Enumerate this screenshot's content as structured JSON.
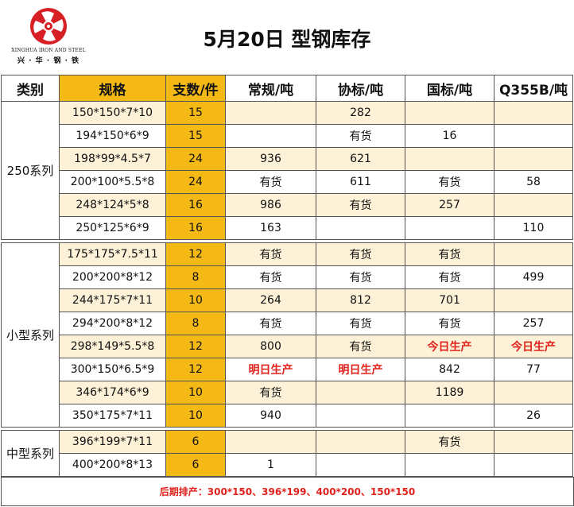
{
  "company": {
    "name_en": "XINGHUA IRON AND STEEL",
    "name_cn": "兴 · 华 · 钢 · 铁"
  },
  "title": "5月20日  型钢库存",
  "headers": [
    "类别",
    "规格",
    "支数/件",
    "常规/吨",
    "协标/吨",
    "国标/吨",
    "Q355B/吨"
  ],
  "groups": [
    {
      "category": "250系列",
      "rows": [
        {
          "spec": "150*150*7*10",
          "count": "15",
          "regular": "",
          "xiebiao": "282",
          "guobiao": "",
          "q355b": ""
        },
        {
          "spec": "194*150*6*9",
          "count": "15",
          "regular": "",
          "xiebiao": "有货",
          "guobiao": "16",
          "q355b": ""
        },
        {
          "spec": "198*99*4.5*7",
          "count": "24",
          "regular": "936",
          "xiebiao": "621",
          "guobiao": "",
          "q355b": ""
        },
        {
          "spec": "200*100*5.5*8",
          "count": "24",
          "regular": "有货",
          "xiebiao": "611",
          "guobiao": "有货",
          "q355b": "58"
        },
        {
          "spec": "248*124*5*8",
          "count": "16",
          "regular": "986",
          "xiebiao": "有货",
          "guobiao": "257",
          "q355b": ""
        },
        {
          "spec": "250*125*6*9",
          "count": "16",
          "regular": "163",
          "xiebiao": "",
          "guobiao": "",
          "q355b": "110"
        }
      ]
    },
    {
      "category": "小型系列",
      "rows": [
        {
          "spec": "175*175*7.5*11",
          "count": "12",
          "regular": "有货",
          "xiebiao": "有货",
          "guobiao": "有货",
          "q355b": ""
        },
        {
          "spec": "200*200*8*12",
          "count": "8",
          "regular": "有货",
          "xiebiao": "有货",
          "guobiao": "有货",
          "q355b": "499"
        },
        {
          "spec": "244*175*7*11",
          "count": "10",
          "regular": "264",
          "xiebiao": "812",
          "guobiao": "701",
          "q355b": ""
        },
        {
          "spec": "294*200*8*12",
          "count": "8",
          "regular": "有货",
          "xiebiao": "有货",
          "guobiao": "有货",
          "q355b": "257"
        },
        {
          "spec": "298*149*5.5*8",
          "count": "12",
          "regular": "800",
          "xiebiao": "有货",
          "guobiao": "今日生产",
          "q355b": "今日生产"
        },
        {
          "spec": "300*150*6.5*9",
          "count": "12",
          "regular": "明日生产",
          "xiebiao": "明日生产",
          "guobiao": "842",
          "q355b": "77"
        },
        {
          "spec": "346*174*6*9",
          "count": "10",
          "regular": "有货",
          "xiebiao": "",
          "guobiao": "1189",
          "q355b": ""
        },
        {
          "spec": "350*175*7*11",
          "count": "10",
          "regular": "940",
          "xiebiao": "",
          "guobiao": "",
          "q355b": "26"
        }
      ]
    },
    {
      "category": "中型系列",
      "rows": [
        {
          "spec": "396*199*7*11",
          "count": "6",
          "regular": "",
          "xiebiao": "",
          "guobiao": "有货",
          "q355b": ""
        },
        {
          "spec": "400*200*8*13",
          "count": "6",
          "regular": "1",
          "xiebiao": "",
          "guobiao": "",
          "q355b": ""
        }
      ]
    }
  ],
  "highlight_values": [
    "今日生产",
    "明日生产"
  ],
  "footer": "后期排产：300*150、396*199、400*200、150*150",
  "colors": {
    "accent_gold": "#f5b916",
    "band_cream": "#fdf2d8",
    "highlight_red": "#e0211b",
    "logo_red": "#d71f26"
  }
}
